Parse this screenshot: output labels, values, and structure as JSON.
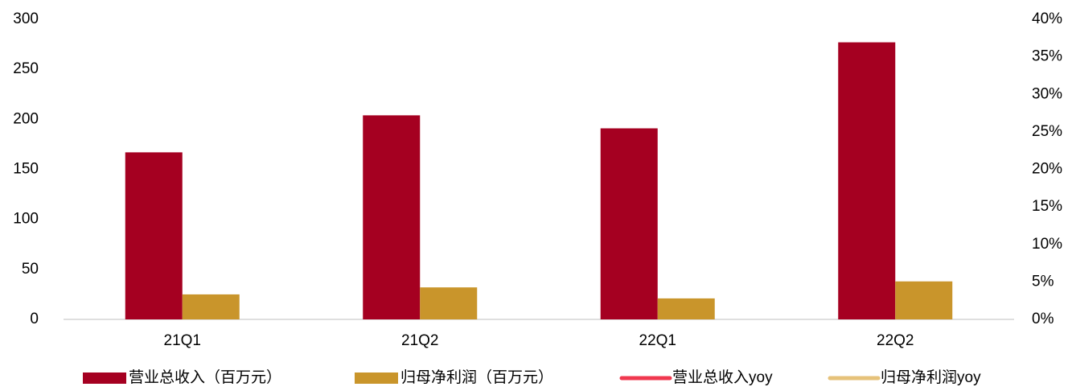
{
  "chart_data": {
    "type": "bar",
    "categories": [
      "21Q1",
      "21Q2",
      "22Q1",
      "22Q2"
    ],
    "series": [
      {
        "name": "营业总收入（百万元）",
        "color": "#a50021",
        "values": [
          167,
          204,
          191,
          277
        ]
      },
      {
        "name": "归母净利润（百万元）",
        "color": "#c9952b",
        "values": [
          25,
          32,
          21,
          38
        ]
      },
      {
        "name": "营业总收入yoy",
        "color": "#f0384f",
        "type": "line",
        "axis": "y2",
        "values": [
          null,
          null,
          null,
          null
        ]
      },
      {
        "name": "归母净利润yoy",
        "color": "#e6c27a",
        "type": "line",
        "axis": "y2",
        "values": [
          null,
          null,
          null,
          null
        ]
      }
    ],
    "ylim": [
      0,
      300
    ],
    "yticks": [
      0,
      50,
      100,
      150,
      200,
      250,
      300
    ],
    "y2lim": [
      0,
      40
    ],
    "y2ticks": [
      {
        "value": 0,
        "label": "0%"
      },
      {
        "value": 5,
        "label": "5%"
      },
      {
        "value": 10,
        "label": "10%"
      },
      {
        "value": 15,
        "label": "15%"
      },
      {
        "value": 20,
        "label": "20%"
      },
      {
        "value": 25,
        "label": "25%"
      },
      {
        "value": 30,
        "label": "30%"
      },
      {
        "value": 35,
        "label": "35%"
      },
      {
        "value": 40,
        "label": "40%"
      }
    ],
    "grid": false,
    "legend": "bottom"
  }
}
